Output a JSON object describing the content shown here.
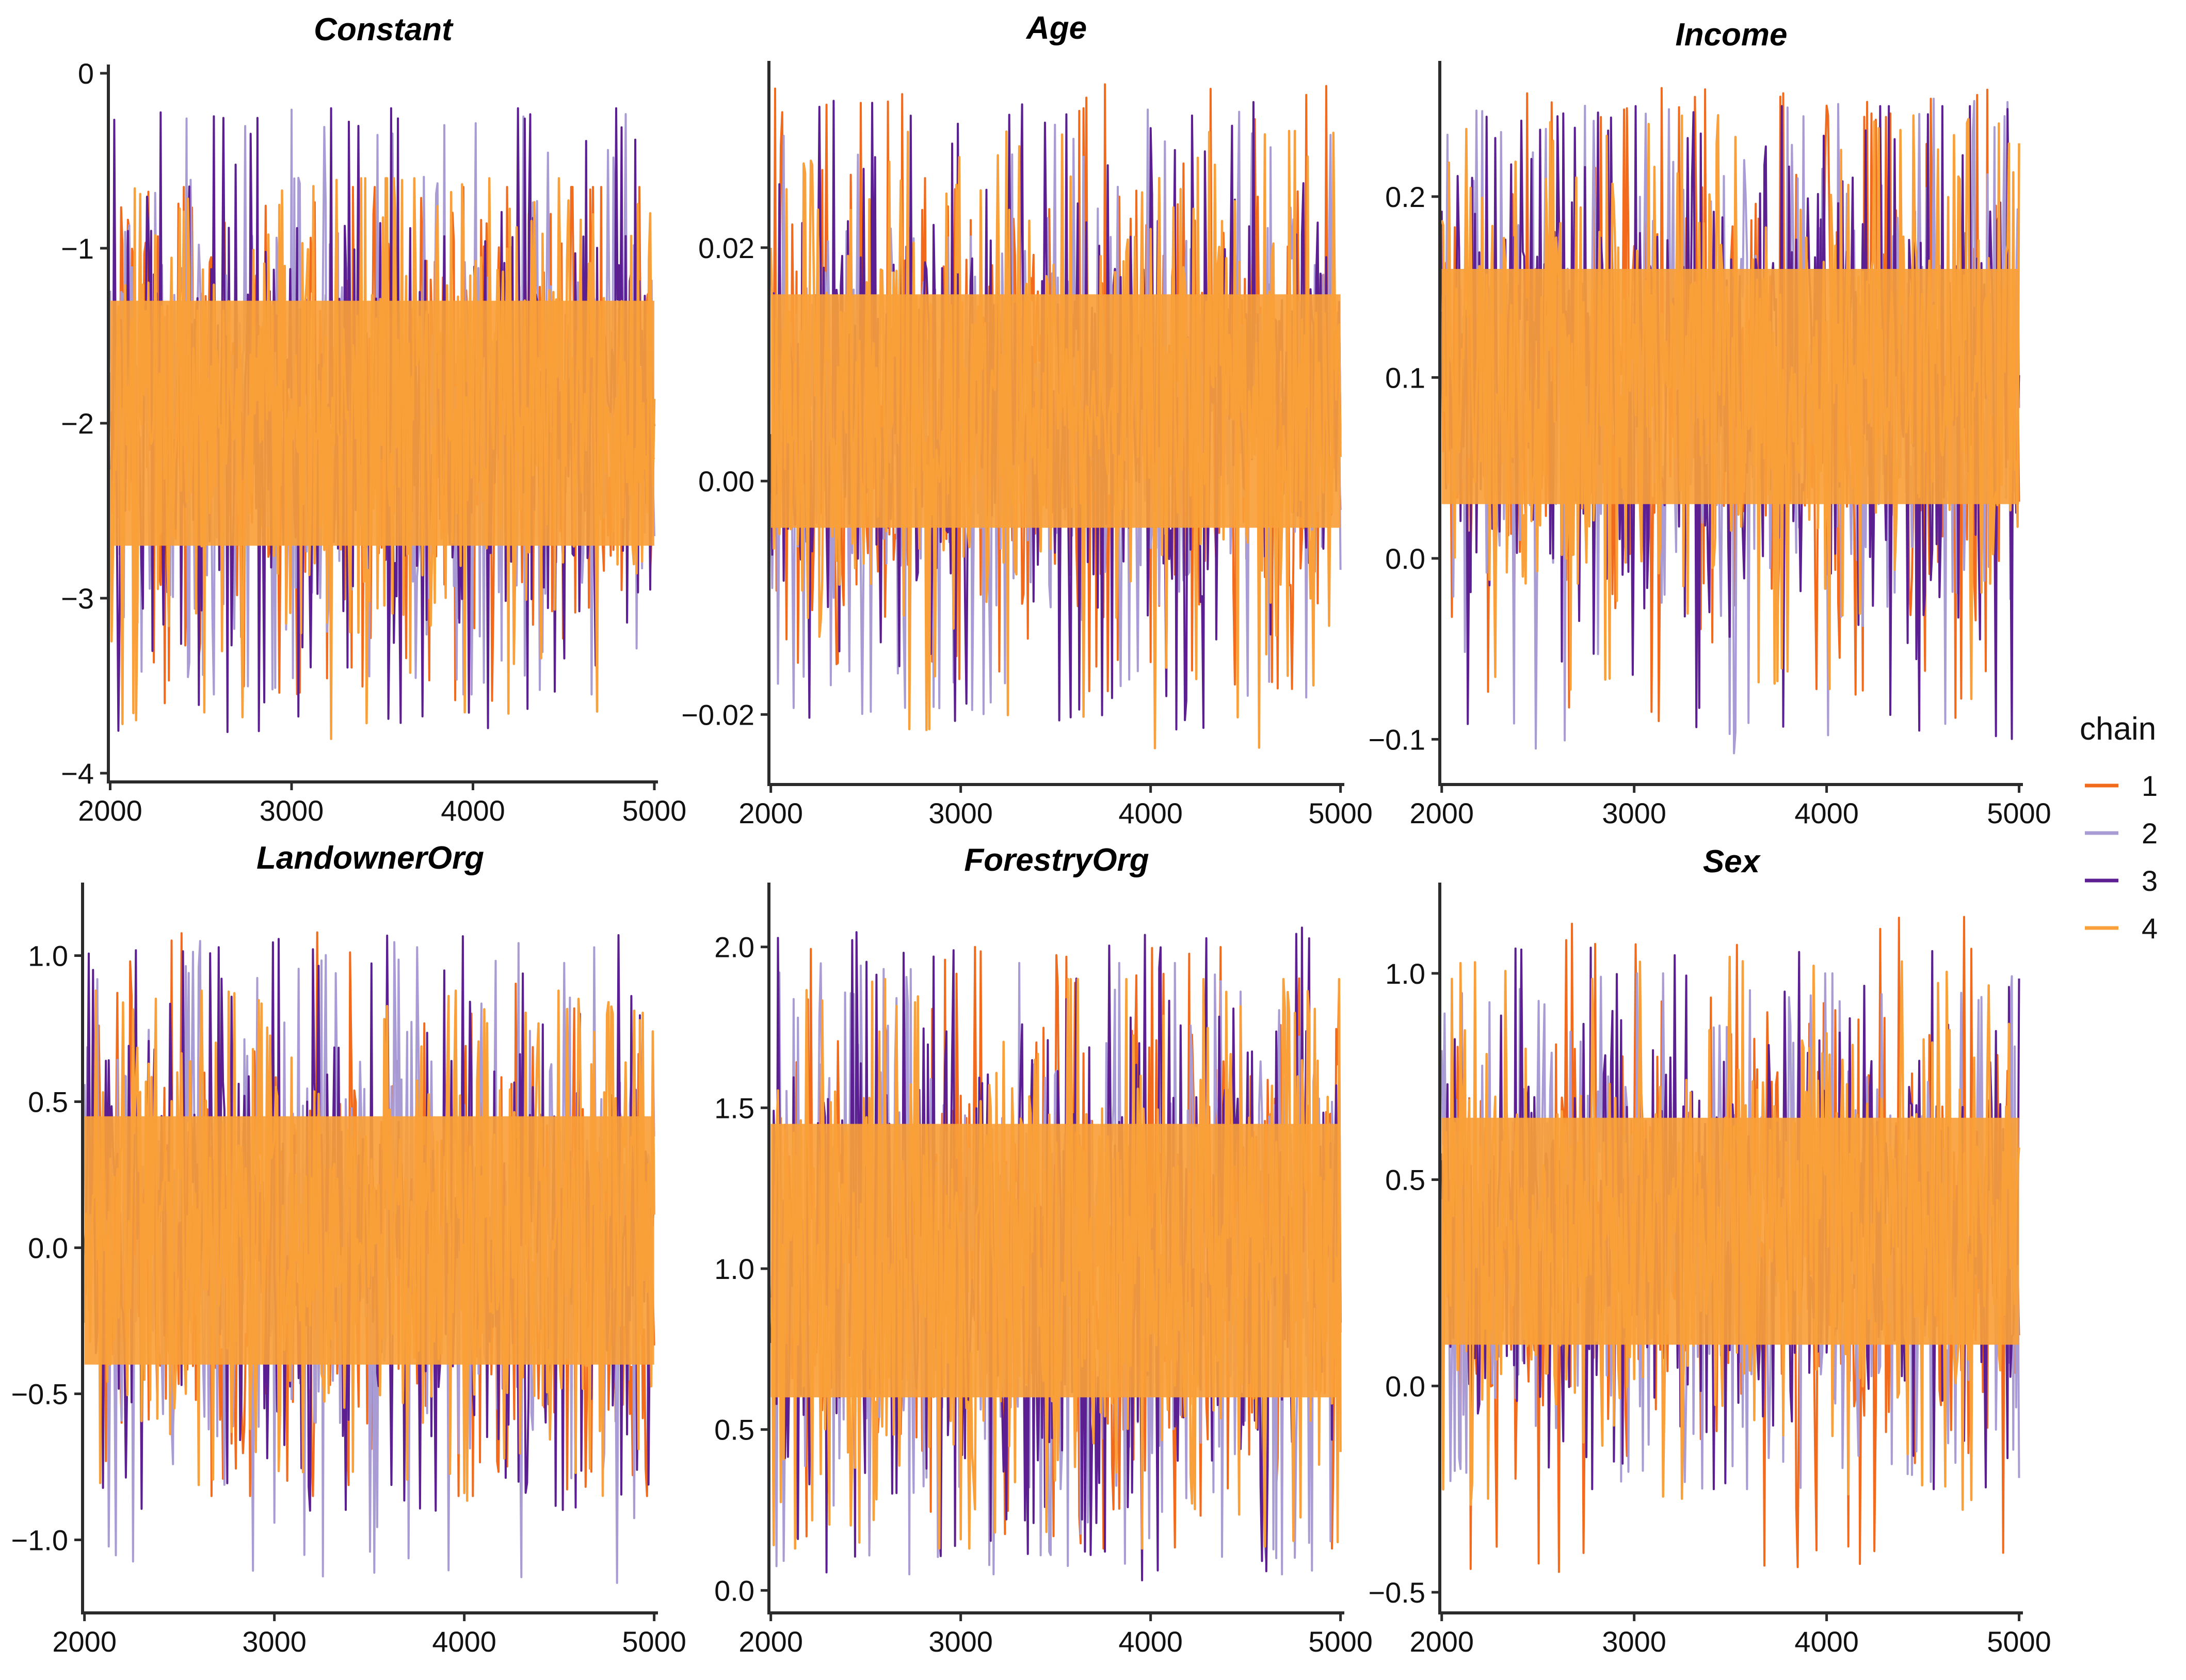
{
  "figure": {
    "legend_title": "chain"
  },
  "chart_data": [
    {
      "type": "line",
      "title": "Constant",
      "xlabel": "",
      "ylabel": "",
      "xlim": [
        1990,
        5020
      ],
      "ylim": [
        -4.05,
        0.05
      ],
      "xticks": [
        2000,
        3000,
        4000,
        5000
      ],
      "xtick_labels": [
        "2000",
        "3000",
        "4000",
        "5000"
      ],
      "yticks": [
        0,
        -1,
        -2,
        -3,
        -4
      ],
      "ytick_labels": [
        "0",
        "−1",
        "−2",
        "−3",
        "−4"
      ],
      "iterations": [
        2000,
        5000
      ],
      "core_band": [
        -2.7,
        -1.3
      ],
      "series_range": {
        "1": [
          -3.6,
          -0.65
        ],
        "2": [
          -3.55,
          -0.15
        ],
        "3": [
          -3.8,
          -0.2
        ],
        "4": [
          -3.85,
          -0.6
        ]
      }
    },
    {
      "type": "line",
      "title": "Age",
      "xlabel": "",
      "ylabel": "",
      "xlim": [
        1990,
        5020
      ],
      "ylim": [
        -0.026,
        0.036
      ],
      "xticks": [
        2000,
        3000,
        4000,
        5000
      ],
      "xtick_labels": [
        "2000",
        "3000",
        "4000",
        "5000"
      ],
      "yticks": [
        0.02,
        0.0,
        -0.02
      ],
      "ytick_labels": [
        "0.02",
        "0.00",
        "−0.02"
      ],
      "iterations": [
        2000,
        5000
      ],
      "core_band": [
        -0.004,
        0.016
      ],
      "series_range": {
        "1": [
          -0.018,
          0.034
        ],
        "2": [
          -0.02,
          0.032
        ],
        "3": [
          -0.022,
          0.033
        ],
        "4": [
          -0.023,
          0.03
        ]
      }
    },
    {
      "type": "line",
      "title": "Income",
      "xlabel": "",
      "ylabel": "",
      "xlim": [
        1990,
        5020
      ],
      "ylim": [
        -0.125,
        0.275
      ],
      "xticks": [
        2000,
        3000,
        4000,
        5000
      ],
      "xtick_labels": [
        "2000",
        "3000",
        "4000",
        "5000"
      ],
      "yticks": [
        0.2,
        0.1,
        0.0,
        -0.1
      ],
      "ytick_labels": [
        "0.2",
        "0.1",
        "0.0",
        "−0.1"
      ],
      "iterations": [
        2000,
        5000
      ],
      "core_band": [
        0.03,
        0.16
      ],
      "series_range": {
        "1": [
          -0.09,
          0.26
        ],
        "2": [
          -0.11,
          0.255
        ],
        "3": [
          -0.1,
          0.25
        ],
        "4": [
          -0.08,
          0.245
        ]
      }
    },
    {
      "type": "line",
      "title": "LandownerOrg",
      "xlabel": "",
      "ylabel": "",
      "xlim": [
        1990,
        5020
      ],
      "ylim": [
        -1.25,
        1.25
      ],
      "xticks": [
        2000,
        3000,
        4000,
        5000
      ],
      "xtick_labels": [
        "2000",
        "3000",
        "4000",
        "5000"
      ],
      "yticks": [
        1.0,
        0.5,
        0.0,
        -0.5,
        -1.0
      ],
      "ytick_labels": [
        "1.0",
        "0.5",
        "0.0",
        "−0.5",
        "−1.0"
      ],
      "iterations": [
        2000,
        5000
      ],
      "core_band": [
        -0.4,
        0.45
      ],
      "series_range": {
        "1": [
          -0.85,
          1.08
        ],
        "2": [
          -1.15,
          1.05
        ],
        "3": [
          -0.9,
          1.07
        ],
        "4": [
          -0.87,
          0.88
        ]
      }
    },
    {
      "type": "line",
      "title": "ForestryOrg",
      "xlabel": "",
      "ylabel": "",
      "xlim": [
        1990,
        5020
      ],
      "ylim": [
        -0.07,
        2.2
      ],
      "xticks": [
        2000,
        3000,
        4000,
        5000
      ],
      "xtick_labels": [
        "2000",
        "3000",
        "4000",
        "5000"
      ],
      "yticks": [
        2.0,
        1.5,
        1.0,
        0.5,
        0.0
      ],
      "ytick_labels": [
        "2.0",
        "1.5",
        "1.0",
        "0.5",
        "0.0"
      ],
      "iterations": [
        2000,
        5000
      ],
      "core_band": [
        0.6,
        1.45
      ],
      "series_range": {
        "1": [
          0.13,
          2.0
        ],
        "2": [
          0.05,
          1.95
        ],
        "3": [
          0.03,
          2.06
        ],
        "4": [
          0.13,
          1.9
        ]
      }
    },
    {
      "type": "line",
      "title": "Sex",
      "xlabel": "",
      "ylabel": "",
      "xlim": [
        1990,
        5020
      ],
      "ylim": [
        -0.55,
        1.22
      ],
      "xticks": [
        2000,
        3000,
        4000,
        5000
      ],
      "xtick_labels": [
        "2000",
        "3000",
        "4000",
        "5000"
      ],
      "yticks": [
        1.0,
        0.5,
        0.0,
        -0.5
      ],
      "ytick_labels": [
        "1.0",
        "0.5",
        "0.0",
        "−0.5"
      ],
      "iterations": [
        2000,
        5000
      ],
      "core_band": [
        0.1,
        0.65
      ],
      "series_range": {
        "1": [
          -0.46,
          1.14
        ],
        "2": [
          -0.25,
          1.0
        ],
        "3": [
          -0.25,
          1.07
        ],
        "4": [
          -0.3,
          1.04
        ]
      }
    }
  ],
  "legend": [
    {
      "label": "1",
      "color": "#F26B1D"
    },
    {
      "label": "2",
      "color": "#A99BD3"
    },
    {
      "label": "3",
      "color": "#5C1F91"
    },
    {
      "label": "4",
      "color": "#F9A03A"
    }
  ]
}
